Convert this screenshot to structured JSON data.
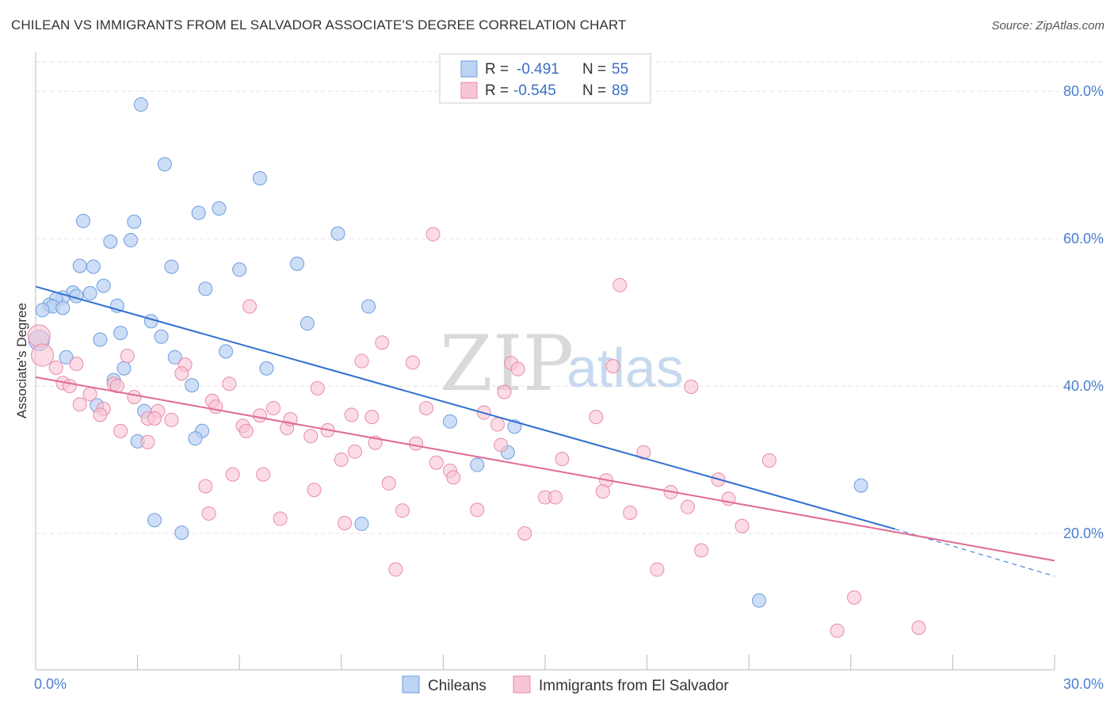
{
  "title": "CHILEAN VS IMMIGRANTS FROM EL SALVADOR ASSOCIATE'S DEGREE CORRELATION CHART",
  "source": "Source: ZipAtlas.com",
  "watermark": {
    "zip": "ZIP",
    "atlas": "atlas"
  },
  "colors": {
    "blue_fill": "#bcd3f3",
    "blue_stroke": "#6e9de0",
    "blue_line": "#2f6fcf",
    "pink_fill": "#f8c5d4",
    "pink_stroke": "#e98aa8",
    "pink_line": "#e06a94",
    "tick_text": "#4a7fd0",
    "grid": "#e2e2e2"
  },
  "legend": {
    "rows": [
      {
        "r_label": "R =",
        "r_value": "-0.491",
        "n_label": "N =",
        "n_value": "55",
        "color": "#bcd3f3"
      },
      {
        "r_label": "R =",
        "r_value": "-0.545",
        "n_label": "N =",
        "n_value": "89",
        "color": "#f8c5d4"
      }
    ]
  },
  "bottom_legend": [
    "Chileans",
    "Immigrants from El Salvador"
  ],
  "chart_data": {
    "type": "scatter",
    "title": "CHILEAN VS IMMIGRANTS FROM EL SALVADOR ASSOCIATE'S DEGREE CORRELATION CHART",
    "xlabel": "",
    "ylabel": "Associate's Degree",
    "xlim": [
      0,
      30
    ],
    "ylim": [
      1.5,
      84
    ],
    "x_tick_labels": [
      "0.0%",
      "30.0%"
    ],
    "y_ticks": [
      20,
      40,
      60,
      80
    ],
    "y_tick_labels": [
      "20.0%",
      "40.0%",
      "60.0%",
      "80.0%"
    ],
    "grid": true,
    "series": [
      {
        "name": "Chileans",
        "color": "#bcd3f3",
        "r": -0.491,
        "n": 55,
        "trend": {
          "x": [
            0,
            25.3
          ],
          "y": [
            53.5,
            20.6
          ],
          "dash_x": [
            25.3,
            30
          ],
          "dash_y": [
            20.6,
            14.2
          ]
        },
        "points": [
          [
            3.1,
            78.2
          ],
          [
            3.8,
            70.1
          ],
          [
            6.6,
            68.2
          ],
          [
            1.4,
            62.4
          ],
          [
            2.9,
            62.3
          ],
          [
            4.8,
            63.5
          ],
          [
            5.4,
            64.1
          ],
          [
            2.2,
            59.6
          ],
          [
            2.8,
            59.8
          ],
          [
            8.9,
            60.7
          ],
          [
            1.3,
            56.3
          ],
          [
            1.7,
            56.2
          ],
          [
            4.0,
            56.2
          ],
          [
            6.0,
            55.8
          ],
          [
            7.7,
            56.6
          ],
          [
            2.0,
            53.6
          ],
          [
            1.1,
            52.7
          ],
          [
            1.2,
            52.2
          ],
          [
            1.6,
            52.6
          ],
          [
            5.0,
            53.2
          ],
          [
            0.8,
            52.0
          ],
          [
            0.6,
            51.8
          ],
          [
            0.4,
            51.0
          ],
          [
            0.5,
            50.8
          ],
          [
            0.8,
            50.6
          ],
          [
            0.2,
            50.3
          ],
          [
            2.4,
            50.9
          ],
          [
            9.8,
            50.8
          ],
          [
            3.4,
            48.8
          ],
          [
            8.0,
            48.5
          ],
          [
            2.5,
            47.2
          ],
          [
            3.7,
            46.7
          ],
          [
            1.9,
            46.3
          ],
          [
            0.1,
            46.2
          ],
          [
            5.6,
            44.7
          ],
          [
            0.9,
            43.9
          ],
          [
            4.1,
            43.9
          ],
          [
            2.6,
            42.4
          ],
          [
            6.8,
            42.4
          ],
          [
            2.3,
            40.8
          ],
          [
            4.6,
            40.1
          ],
          [
            1.8,
            37.4
          ],
          [
            3.2,
            36.6
          ],
          [
            12.2,
            35.2
          ],
          [
            14.1,
            34.5
          ],
          [
            4.9,
            33.9
          ],
          [
            4.7,
            32.9
          ],
          [
            3.0,
            32.5
          ],
          [
            13.9,
            31.0
          ],
          [
            13.0,
            29.3
          ],
          [
            24.3,
            26.5
          ],
          [
            3.5,
            21.8
          ],
          [
            4.3,
            20.1
          ],
          [
            9.6,
            21.3
          ],
          [
            21.3,
            10.9
          ]
        ]
      },
      {
        "name": "Immigrants from El Salvador",
        "color": "#f8c5d4",
        "r": -0.545,
        "n": 89,
        "trend": {
          "x": [
            0,
            30
          ],
          "y": [
            41.2,
            16.3
          ]
        },
        "points": [
          [
            0.1,
            46.8
          ],
          [
            0.2,
            44.2
          ],
          [
            0.6,
            42.5
          ],
          [
            1.2,
            43.0
          ],
          [
            0.8,
            40.4
          ],
          [
            1.0,
            40.0
          ],
          [
            2.3,
            40.3
          ],
          [
            1.6,
            38.9
          ],
          [
            1.3,
            37.5
          ],
          [
            2.0,
            36.9
          ],
          [
            1.9,
            36.1
          ],
          [
            2.9,
            38.5
          ],
          [
            2.7,
            44.1
          ],
          [
            4.4,
            42.9
          ],
          [
            4.3,
            41.7
          ],
          [
            3.6,
            36.6
          ],
          [
            3.3,
            35.6
          ],
          [
            3.5,
            35.6
          ],
          [
            4.0,
            35.4
          ],
          [
            2.5,
            33.9
          ],
          [
            3.3,
            32.4
          ],
          [
            5.2,
            38.0
          ],
          [
            5.3,
            37.2
          ],
          [
            5.7,
            40.3
          ],
          [
            6.1,
            34.6
          ],
          [
            6.2,
            33.9
          ],
          [
            6.6,
            36.0
          ],
          [
            7.0,
            37.0
          ],
          [
            7.4,
            34.3
          ],
          [
            7.5,
            35.5
          ],
          [
            8.1,
            33.2
          ],
          [
            8.3,
            39.7
          ],
          [
            8.6,
            34.0
          ],
          [
            9.0,
            30.0
          ],
          [
            9.3,
            36.1
          ],
          [
            9.9,
            35.8
          ],
          [
            10.0,
            32.3
          ],
          [
            9.4,
            31.1
          ],
          [
            9.6,
            43.4
          ],
          [
            10.2,
            45.9
          ],
          [
            11.1,
            43.2
          ],
          [
            11.5,
            37.0
          ],
          [
            11.2,
            32.2
          ],
          [
            11.8,
            29.6
          ],
          [
            12.2,
            28.5
          ],
          [
            12.3,
            27.6
          ],
          [
            11.7,
            60.6
          ],
          [
            13.2,
            36.4
          ],
          [
            13.6,
            34.8
          ],
          [
            14.0,
            43.1
          ],
          [
            14.2,
            42.3
          ],
          [
            13.8,
            39.2
          ],
          [
            13.7,
            32.0
          ],
          [
            15.5,
            30.1
          ],
          [
            16.5,
            35.8
          ],
          [
            17.0,
            42.7
          ],
          [
            16.8,
            27.2
          ],
          [
            16.7,
            25.7
          ],
          [
            17.2,
            53.7
          ],
          [
            17.5,
            22.8
          ],
          [
            17.9,
            31.0
          ],
          [
            18.3,
            15.1
          ],
          [
            18.7,
            25.6
          ],
          [
            19.2,
            23.6
          ],
          [
            19.3,
            39.9
          ],
          [
            19.6,
            17.7
          ],
          [
            20.1,
            27.3
          ],
          [
            20.4,
            24.7
          ],
          [
            20.8,
            21.0
          ],
          [
            21.6,
            29.9
          ],
          [
            6.3,
            50.8
          ],
          [
            5.0,
            26.4
          ],
          [
            5.1,
            22.7
          ],
          [
            5.8,
            28.0
          ],
          [
            6.7,
            28.0
          ],
          [
            7.2,
            22.0
          ],
          [
            8.2,
            25.9
          ],
          [
            9.1,
            21.4
          ],
          [
            10.4,
            26.8
          ],
          [
            10.8,
            23.1
          ],
          [
            13.0,
            23.2
          ],
          [
            14.4,
            20.0
          ],
          [
            15.0,
            24.9
          ],
          [
            15.3,
            24.9
          ],
          [
            10.6,
            15.1
          ],
          [
            23.6,
            6.8
          ],
          [
            24.1,
            11.3
          ],
          [
            26.0,
            7.2
          ],
          [
            2.4,
            40.0
          ]
        ]
      }
    ]
  }
}
